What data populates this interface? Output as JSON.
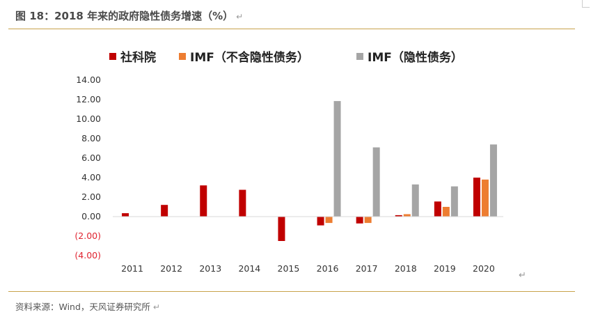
{
  "figure": {
    "title": "图 18：2018 年来的政府隐性债务增速（%）",
    "source": "资料来源：Wind，天风证券研究所"
  },
  "chart_data": {
    "type": "bar",
    "categories": [
      "2011",
      "2012",
      "2013",
      "2014",
      "2015",
      "2016",
      "2017",
      "2018",
      "2019",
      "2020"
    ],
    "series": [
      {
        "name": "社科院",
        "color": "#c00000",
        "values": [
          0.35,
          1.2,
          3.2,
          2.75,
          -2.5,
          -0.9,
          -0.7,
          0.15,
          1.55,
          4.0
        ]
      },
      {
        "name": "IMF（不含隐性债务）",
        "color": "#ed7d31",
        "values": [
          null,
          null,
          null,
          null,
          null,
          -0.65,
          -0.65,
          0.25,
          1.0,
          3.8
        ]
      },
      {
        "name": "IMF（隐性债务）",
        "color": "#a5a5a5",
        "values": [
          null,
          null,
          null,
          null,
          null,
          11.85,
          7.1,
          3.3,
          3.1,
          7.4
        ]
      }
    ],
    "ylim": [
      -4,
      14
    ],
    "ytick_step": 2,
    "ytick_labels": [
      "(4.00)",
      "(2.00)",
      "0.00",
      "2.00",
      "4.00",
      "6.00",
      "8.00",
      "10.00",
      "12.00",
      "14.00"
    ],
    "negative_tick_color": "#e0232f",
    "grid": false,
    "legend": "top"
  }
}
